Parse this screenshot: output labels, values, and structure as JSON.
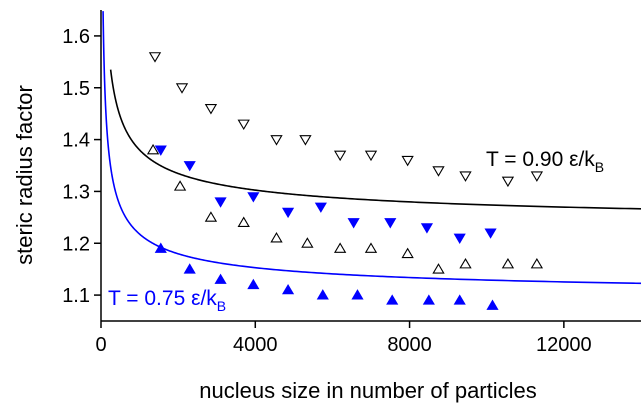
{
  "chart_data": {
    "type": "scatter",
    "xlabel": "nucleus size in number of particles",
    "ylabel": "steric radius factor",
    "xlim": [
      0,
      14000
    ],
    "ylim": [
      1.05,
      1.65
    ],
    "x_ticks": [
      "0",
      "4000",
      "8000",
      "12000"
    ],
    "y_ticks": [
      "1.1",
      "1.2",
      "1.3",
      "1.4",
      "1.5",
      "1.6"
    ],
    "grid": false,
    "series": [
      {
        "marker": "triangle-down-open",
        "color": "#000000",
        "points": [
          [
            1400,
            1.56
          ],
          [
            2100,
            1.5
          ],
          [
            2850,
            1.46
          ],
          [
            3700,
            1.43
          ],
          [
            4550,
            1.4
          ],
          [
            5300,
            1.4
          ],
          [
            6200,
            1.37
          ],
          [
            7000,
            1.37
          ],
          [
            7950,
            1.36
          ],
          [
            8750,
            1.34
          ],
          [
            9450,
            1.33
          ],
          [
            10550,
            1.32
          ],
          [
            11300,
            1.33
          ]
        ]
      },
      {
        "marker": "triangle-up-open",
        "color": "#000000",
        "points": [
          [
            1350,
            1.38
          ],
          [
            2050,
            1.31
          ],
          [
            2850,
            1.25
          ],
          [
            3700,
            1.24
          ],
          [
            4550,
            1.21
          ],
          [
            5350,
            1.2
          ],
          [
            6200,
            1.19
          ],
          [
            7000,
            1.19
          ],
          [
            7950,
            1.18
          ],
          [
            8750,
            1.15
          ],
          [
            9450,
            1.16
          ],
          [
            10550,
            1.16
          ],
          [
            11300,
            1.16
          ]
        ]
      },
      {
        "marker": "triangle-down-filled",
        "color": "#0000ff",
        "points": [
          [
            1550,
            1.38
          ],
          [
            2300,
            1.35
          ],
          [
            3100,
            1.28
          ],
          [
            3950,
            1.29
          ],
          [
            4850,
            1.26
          ],
          [
            5700,
            1.27
          ],
          [
            6550,
            1.24
          ],
          [
            7500,
            1.24
          ],
          [
            8450,
            1.23
          ],
          [
            9300,
            1.21
          ],
          [
            10100,
            1.22
          ]
        ]
      },
      {
        "marker": "triangle-up-filled",
        "color": "#0000ff",
        "points": [
          [
            1550,
            1.19
          ],
          [
            2300,
            1.15
          ],
          [
            3100,
            1.13
          ],
          [
            3950,
            1.12
          ],
          [
            4850,
            1.11
          ],
          [
            5750,
            1.1
          ],
          [
            6650,
            1.1
          ],
          [
            7550,
            1.09
          ],
          [
            8500,
            1.09
          ],
          [
            9300,
            1.09
          ],
          [
            10150,
            1.08
          ]
        ]
      }
    ],
    "curves": [
      {
        "color": "#000000",
        "model": "a + b / sqrt(x)",
        "a": 1.225,
        "b": 4.9,
        "x_range": [
          250,
          14000
        ]
      },
      {
        "color": "#0000ff",
        "model": "a + b / sqrt(x)",
        "a": 1.088,
        "b": 4.1,
        "x_range": [
          50,
          14000
        ]
      }
    ],
    "annotations": [
      {
        "text": "T = 0.90 ε/k",
        "sub": "B",
        "color": "#000000"
      },
      {
        "text": "T = 0.75 ε/k",
        "sub": "B",
        "color": "#0000ff"
      }
    ]
  }
}
